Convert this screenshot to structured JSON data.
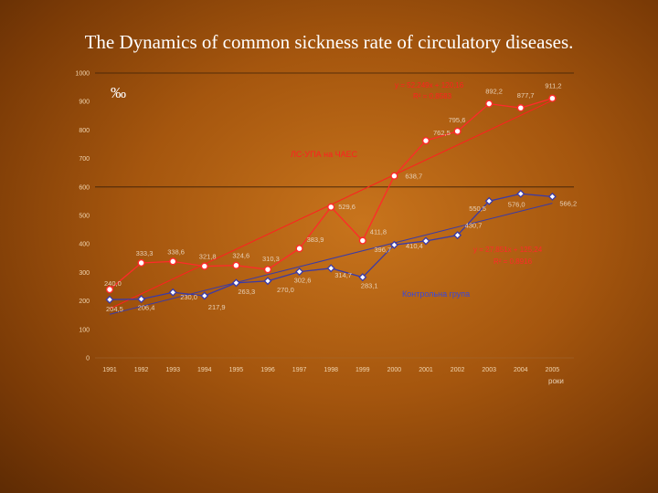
{
  "title": "The  Dynamics  of  common sickness rate  of  circulatory diseases.",
  "unit_label": "‰",
  "x_unit": "роки",
  "colors": {
    "red_series": "#ff2a2a",
    "blue_series": "#3a3aa8",
    "marker_fill": "#ffffff"
  },
  "chart_data": {
    "type": "line",
    "title": "",
    "xlabel": "роки",
    "ylabel": "‰",
    "ylim": [
      0,
      1000
    ],
    "y_ticks": [
      "0",
      "100",
      "200",
      "300",
      "400",
      "500",
      "600",
      "700",
      "800",
      "900",
      "1000"
    ],
    "categories": [
      "1991",
      "1992",
      "1993",
      "1994",
      "1995",
      "1996",
      "1997",
      "1998",
      "1999",
      "2000",
      "2001",
      "2002",
      "2003",
      "2004",
      "2005"
    ],
    "grid": false,
    "series": [
      {
        "name": "ЛС-УПА на ЧАЕС",
        "values": [
          240.0,
          333.3,
          338.6,
          321.8,
          324.6,
          310.3,
          383.9,
          529.6,
          411.8,
          638.7,
          762.5,
          795.6,
          892.2,
          877.7,
          911.2
        ],
        "labels": [
          "240,0",
          "333,3",
          "338,6",
          "321,8",
          "324,6",
          "310,3",
          "383,9",
          "529,6",
          "411,8",
          "638,7",
          "762,5",
          "795,6",
          "892,2",
          "877,7",
          "911,2"
        ],
        "trend": {
          "equation": "y = 52,249x + 120,16",
          "r2": "R² = 0,8583"
        }
      },
      {
        "name": "Контрольна група",
        "values": [
          204.5,
          206.4,
          230.0,
          217.9,
          263.3,
          270.0,
          302.6,
          314.7,
          283.1,
          396.7,
          410.4,
          430.7,
          550.5,
          576.0,
          566.2
        ],
        "labels": [
          "204,5",
          "206,4",
          "230,0",
          "217,9",
          "263,3",
          "270,0",
          "302,6",
          "314,7",
          "283,1",
          "396,7",
          "410,4",
          "430,7",
          "550,5",
          "576,0",
          "566,2"
        ],
        "trend": {
          "equation": "y = 27,851x + 125,24",
          "r2": "R² = 0,8916"
        }
      }
    ]
  }
}
